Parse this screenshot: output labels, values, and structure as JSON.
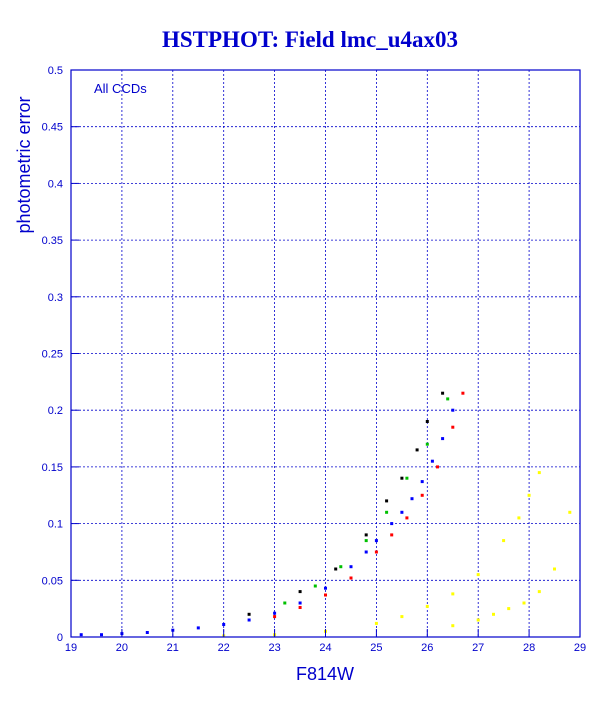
{
  "chart_data": {
    "type": "scatter",
    "title": "HSTPHOT: Field lmc_u4ax03",
    "xlabel": "F814W",
    "ylabel": "photometric error",
    "annotation": "All CCDs",
    "xlim": [
      19,
      29
    ],
    "ylim": [
      0,
      0.5
    ],
    "x_ticks": [
      "19",
      "20",
      "21",
      "22",
      "23",
      "24",
      "25",
      "26",
      "27",
      "28",
      "29"
    ],
    "y_ticks": [
      "0",
      "0.05",
      "0.1",
      "0.15",
      "0.2",
      "0.25",
      "0.3",
      "0.35",
      "0.4",
      "0.45",
      "0.5"
    ],
    "grid": true,
    "colors": {
      "frame": "#0000cc",
      "title": "#0000cc",
      "ccd_blue": "#0000ff",
      "ccd_red": "#ff0000",
      "ccd_green": "#00c000",
      "ccd_black": "#000000",
      "second_sequence": "#ffff00"
    },
    "series": [
      {
        "color": "#0000ff",
        "x": [
          19.2,
          19.6,
          20.0,
          20.5,
          21.0,
          21.5,
          22.0,
          22.5,
          23.0,
          23.5,
          24.0,
          24.5,
          24.8,
          25.0,
          25.3,
          25.5,
          25.7,
          25.9,
          26.1,
          26.3,
          26.5
        ],
        "y": [
          0.002,
          0.002,
          0.003,
          0.004,
          0.006,
          0.008,
          0.011,
          0.015,
          0.021,
          0.03,
          0.043,
          0.062,
          0.075,
          0.085,
          0.1,
          0.11,
          0.122,
          0.137,
          0.155,
          0.175,
          0.2
        ]
      },
      {
        "color": "#ff0000",
        "x": [
          23.0,
          23.5,
          24.0,
          24.5,
          25.0,
          25.3,
          25.6,
          25.9,
          26.2,
          26.5,
          26.7
        ],
        "y": [
          0.018,
          0.026,
          0.037,
          0.052,
          0.075,
          0.09,
          0.105,
          0.125,
          0.15,
          0.185,
          0.215
        ]
      },
      {
        "color": "#00c000",
        "x": [
          23.2,
          23.8,
          24.3,
          24.8,
          25.2,
          25.6,
          26.0,
          26.4
        ],
        "y": [
          0.03,
          0.045,
          0.062,
          0.085,
          0.11,
          0.14,
          0.17,
          0.21
        ]
      },
      {
        "color": "#000000",
        "x": [
          22.5,
          23.5,
          24.2,
          24.8,
          25.2,
          25.5,
          25.8,
          26.0,
          26.3
        ],
        "y": [
          0.02,
          0.04,
          0.06,
          0.09,
          0.12,
          0.14,
          0.165,
          0.19,
          0.215
        ]
      },
      {
        "color": "#ffff00",
        "x": [
          22.0,
          23.0,
          24.0,
          25.0,
          25.5,
          26.0,
          26.5,
          27.0,
          27.5,
          27.8,
          28.0,
          28.2
        ],
        "y": [
          0.001,
          0.002,
          0.005,
          0.012,
          0.018,
          0.027,
          0.038,
          0.055,
          0.085,
          0.105,
          0.125,
          0.145
        ]
      },
      {
        "color": "#ffff00",
        "x": [
          26.5,
          27.0,
          27.3,
          27.6,
          27.9,
          28.2,
          28.5,
          28.8
        ],
        "y": [
          0.01,
          0.015,
          0.02,
          0.025,
          0.03,
          0.04,
          0.06,
          0.11
        ]
      }
    ]
  }
}
